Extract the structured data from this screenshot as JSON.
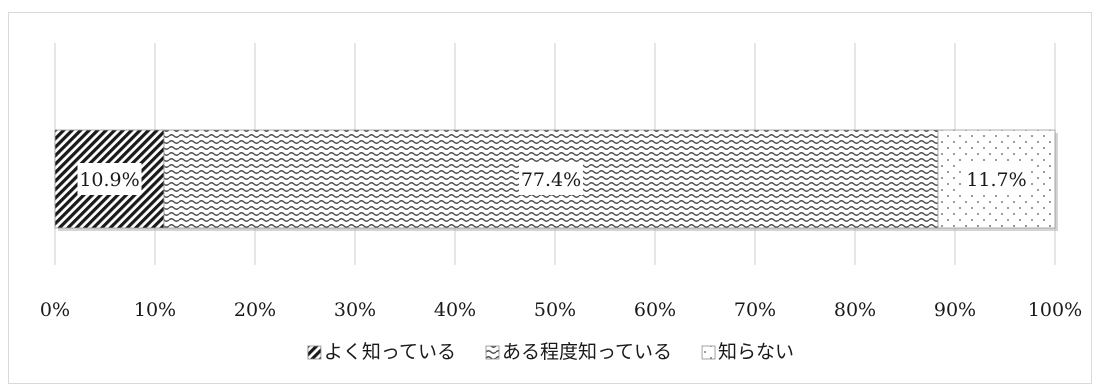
{
  "chart_data": {
    "type": "bar",
    "orientation": "horizontal",
    "stacked": true,
    "percent": true,
    "categories": [
      ""
    ],
    "series": [
      {
        "name": "よく知っている",
        "values": [
          10.9
        ],
        "label": "10.9%",
        "pattern": "diagonal-stripes",
        "color": "#1a1a1a"
      },
      {
        "name": "ある程度知っている",
        "values": [
          77.4
        ],
        "label": "77.4%",
        "pattern": "wave",
        "color": "#555555"
      },
      {
        "name": "知らない",
        "values": [
          11.7
        ],
        "label": "11.7%",
        "pattern": "dots",
        "color": "#777777"
      }
    ],
    "xlim": [
      0,
      100
    ],
    "x_ticks": [
      "0%",
      "10%",
      "20%",
      "30%",
      "40%",
      "50%",
      "60%",
      "70%",
      "80%",
      "90%",
      "100%"
    ],
    "grid": true,
    "legend": "bottom"
  }
}
